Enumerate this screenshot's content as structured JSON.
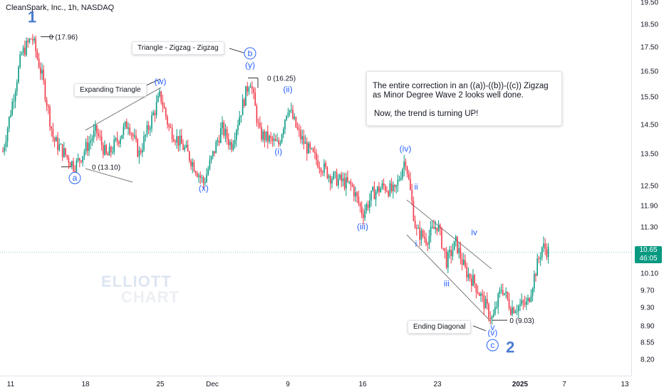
{
  "header": {
    "title": "CleanSpark, Inc., 1h, NASDAQ"
  },
  "price_badge": {
    "price": "10.65",
    "countdown": "46:05",
    "color": "#089981"
  },
  "colors": {
    "up": "#089981",
    "down": "#f23645",
    "wave_blue": "#2962ff",
    "label_blue": "#4a7bd0"
  },
  "watermark": {
    "line1": "ELLIOTT",
    "line2": "CHART"
  },
  "note": {
    "line1": "The entire correction in an ((a))-((b))-((c)) Zigzag",
    "line2": "as Minor Degree Wave 2 looks well done.",
    "line3": "Now, the trend is turning UP!"
  },
  "callouts": {
    "expanding_triangle": "Expanding Triangle",
    "triangle_zigzag": "Triangle -  Zigzag - Zigzag",
    "ending_diagonal": "Ending Diagonal"
  },
  "chart_data": {
    "type": "candlestick",
    "title": "CleanSpark, Inc., 1h, NASDAQ",
    "x_ticks": [
      "11",
      "18",
      "25",
      "Dec",
      "9",
      "16",
      "23",
      "2025",
      "7",
      "13"
    ],
    "y_ticks": [
      19.5,
      18.5,
      17.5,
      16.5,
      15.5,
      14.5,
      13.5,
      12.5,
      11.9,
      11.3,
      10.7,
      10.1,
      9.7,
      9.3,
      8.9,
      8.55,
      8.2
    ],
    "y_scale": "log",
    "last_price": 10.65,
    "price_path": [
      {
        "date": "Nov 8",
        "price": 13.6
      },
      {
        "date": "Nov 11",
        "price": 15.0
      },
      {
        "date": "Nov 12",
        "price": 17.2
      },
      {
        "date": "Nov 13",
        "price": 17.96
      },
      {
        "date": "Nov 14",
        "price": 16.2
      },
      {
        "date": "Nov 15",
        "price": 14.0
      },
      {
        "date": "Nov 17",
        "price": 13.1
      },
      {
        "date": "Nov 19",
        "price": 14.3
      },
      {
        "date": "Nov 20",
        "price": 13.4
      },
      {
        "date": "Nov 22",
        "price": 14.6
      },
      {
        "date": "Nov 23",
        "price": 13.5
      },
      {
        "date": "Nov 25",
        "price": 15.6
      },
      {
        "date": "Nov 26",
        "price": 14.4
      },
      {
        "date": "Nov 28",
        "price": 13.6
      },
      {
        "date": "Nov 30",
        "price": 12.6
      },
      {
        "date": "Dec 2",
        "price": 14.4
      },
      {
        "date": "Dec 3",
        "price": 13.8
      },
      {
        "date": "Dec 5",
        "price": 16.25
      },
      {
        "date": "Dec 6",
        "price": 14.2
      },
      {
        "date": "Dec 8",
        "price": 13.8
      },
      {
        "date": "Dec 9",
        "price": 15.2
      },
      {
        "date": "Dec 10",
        "price": 14.2
      },
      {
        "date": "Dec 11",
        "price": 13.6
      },
      {
        "date": "Dec 13",
        "price": 12.8
      },
      {
        "date": "Dec 15",
        "price": 12.5
      },
      {
        "date": "Dec 16",
        "price": 11.7
      },
      {
        "date": "Dec 17",
        "price": 12.3
      },
      {
        "date": "Dec 18",
        "price": 12.5
      },
      {
        "date": "Dec 19",
        "price": 12.3
      },
      {
        "date": "Dec 20",
        "price": 13.4
      },
      {
        "date": "Dec 21",
        "price": 11.2
      },
      {
        "date": "Dec 22",
        "price": 11.0
      },
      {
        "date": "Dec 23",
        "price": 11.4
      },
      {
        "date": "Dec 24",
        "price": 10.4
      },
      {
        "date": "Dec 25",
        "price": 10.9
      },
      {
        "date": "Dec 26",
        "price": 10.2
      },
      {
        "date": "Dec 27",
        "price": 9.9
      },
      {
        "date": "Dec 29",
        "price": 9.03
      },
      {
        "date": "Dec 30",
        "price": 9.8
      },
      {
        "date": "Dec 31",
        "price": 9.3
      },
      {
        "date": "Jan 2",
        "price": 9.4
      },
      {
        "date": "Jan 3",
        "price": 10.1
      },
      {
        "date": "Jan 4",
        "price": 10.8
      },
      {
        "date": "Jan 5",
        "price": 10.65
      }
    ],
    "annotations": [
      {
        "text": "1",
        "date": "Nov 13",
        "price": 18.6,
        "style": "big"
      },
      {
        "text": "0 (17.96)",
        "date": "Nov 13",
        "price": 17.96,
        "style": "level"
      },
      {
        "text": "a",
        "date": "Nov 17",
        "price": 12.75,
        "style": "circled"
      },
      {
        "text": "0 (13.10)",
        "date": "Nov 17",
        "price": 13.1,
        "style": "level"
      },
      {
        "text": "(w)",
        "date": "Nov 25",
        "price": 16.0,
        "style": "wave"
      },
      {
        "text": "(x)",
        "date": "Nov 30",
        "price": 12.35,
        "style": "wave"
      },
      {
        "text": "b",
        "date": "Dec 5",
        "price": 17.25,
        "style": "circled"
      },
      {
        "text": "(y)",
        "date": "Dec 5",
        "price": 16.65,
        "style": "wave"
      },
      {
        "text": "0 (16.25)",
        "date": "Dec 5",
        "price": 16.25,
        "style": "level"
      },
      {
        "text": "(i)",
        "date": "Dec 8",
        "price": 13.5,
        "style": "wave"
      },
      {
        "text": "(ii)",
        "date": "Dec 9",
        "price": 15.7,
        "style": "wave"
      },
      {
        "text": "(iii)",
        "date": "Dec 16",
        "price": 11.25,
        "style": "wave"
      },
      {
        "text": "(iv)",
        "date": "Dec 20",
        "price": 13.6,
        "style": "wave"
      },
      {
        "text": "i",
        "date": "Dec 21",
        "price": 10.8,
        "style": "wave"
      },
      {
        "text": "ii",
        "date": "Dec 21",
        "price": 12.4,
        "style": "wave"
      },
      {
        "text": "iii",
        "date": "Dec 24",
        "price": 9.8,
        "style": "wave"
      },
      {
        "text": "iv",
        "date": "Dec 27",
        "price": 11.1,
        "style": "wave"
      },
      {
        "text": "v",
        "date": "Dec 29",
        "price": 8.82,
        "style": "wave"
      },
      {
        "text": "(v)",
        "date": "Dec 29",
        "price": 8.7,
        "style": "wave"
      },
      {
        "text": "0 (9.03)",
        "date": "Dec 29",
        "price": 9.03,
        "style": "level"
      },
      {
        "text": "c",
        "date": "Dec 29",
        "price": 8.5,
        "style": "circled"
      },
      {
        "text": "2",
        "date": "Dec 30",
        "price": 8.35,
        "style": "big"
      }
    ]
  }
}
